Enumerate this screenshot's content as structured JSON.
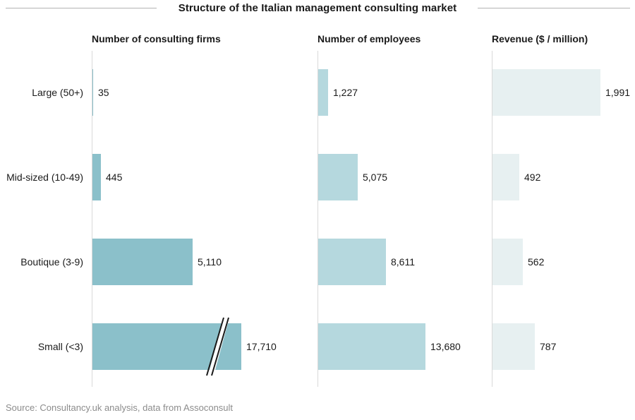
{
  "title": "Structure of the Italian management consulting market",
  "source_note": "Source: Consultancy.uk analysis, data from Assoconsult",
  "chart_data": {
    "type": "bar",
    "orientation": "horizontal",
    "value_label_position": "outside-end",
    "grid": false,
    "legend": false,
    "categories": [
      "Large (50+)",
      "Mid-sized (10-49)",
      "Boutique (3-9)",
      "Small (<3)"
    ],
    "panels": [
      {
        "header": "Number of consulting firms",
        "values": [
          35,
          445,
          5110,
          17710
        ],
        "value_labels": [
          "35",
          "445",
          "5,110",
          "17,710"
        ],
        "bar_color": "#8bc0ca",
        "axis_break_index": 3,
        "axis_break_note": "bar for 17,710 is truncated and shown with a double slash break mark"
      },
      {
        "header": "Number of employees",
        "values": [
          1227,
          5075,
          8611,
          13680
        ],
        "value_labels": [
          "1,227",
          "5,075",
          "8,611",
          "13,680"
        ],
        "bar_color": "#b5d8de",
        "axis_break_index": null
      },
      {
        "header": "Revenue ($ / million)",
        "values": [
          1991,
          492,
          562,
          787
        ],
        "value_labels": [
          "1,991",
          "492",
          "562",
          "787"
        ],
        "bar_color": "#e7f0f1",
        "axis_break_index": null
      }
    ]
  },
  "colors": {
    "axis_line": "#d9d9d9",
    "title_rule": "#b3b3b3",
    "text": "#1a1a1a",
    "source_text": "#8c8c8c",
    "background": "#ffffff",
    "break_mark_stroke": "#1a1a1a"
  }
}
